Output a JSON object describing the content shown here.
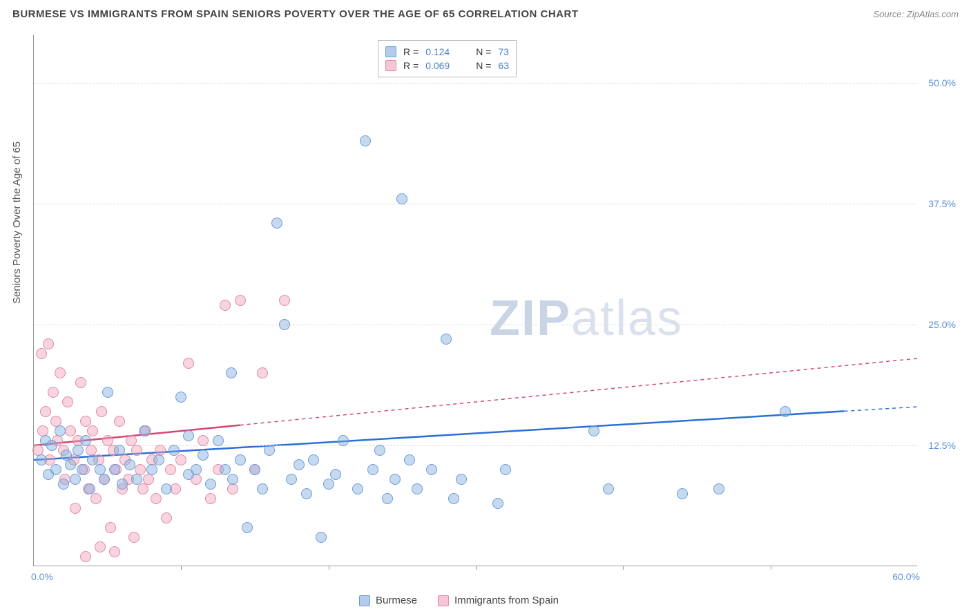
{
  "header": {
    "title": "BURMESE VS IMMIGRANTS FROM SPAIN SENIORS POVERTY OVER THE AGE OF 65 CORRELATION CHART",
    "source_prefix": "Source: ",
    "source": "ZipAtlas.com"
  },
  "chart": {
    "type": "scatter",
    "ylabel": "Seniors Poverty Over the Age of 65",
    "watermark_a": "ZIP",
    "watermark_b": "atlas",
    "xlim": [
      0,
      60
    ],
    "ylim": [
      0,
      55
    ],
    "xtick_labels": [
      "0.0%",
      "60.0%"
    ],
    "xtick_positions": [
      0,
      60
    ],
    "xtick_marks": [
      10,
      20,
      30,
      40,
      50
    ],
    "ytick_labels": [
      "12.5%",
      "25.0%",
      "37.5%",
      "50.0%"
    ],
    "ytick_positions": [
      12.5,
      25,
      37.5,
      50
    ],
    "background_color": "#ffffff",
    "grid_color": "#dddddd",
    "axis_color": "#999999",
    "series_blue": {
      "color_fill": "rgba(130,170,220,0.45)",
      "color_stroke": "#6a9ed8",
      "trend_color": "#2a6fd6",
      "trend": {
        "x1": 0,
        "y1": 11.0,
        "x2": 60,
        "y2": 16.5,
        "solid_until": 55
      },
      "points": [
        [
          0.5,
          11
        ],
        [
          0.8,
          13
        ],
        [
          1,
          9.5
        ],
        [
          1.2,
          12.5
        ],
        [
          1.5,
          10
        ],
        [
          1.8,
          14
        ],
        [
          2,
          8.5
        ],
        [
          2.2,
          11.5
        ],
        [
          2.5,
          10.5
        ],
        [
          2.8,
          9
        ],
        [
          3,
          12
        ],
        [
          3.3,
          10
        ],
        [
          3.5,
          13
        ],
        [
          3.8,
          8
        ],
        [
          4.0,
          11
        ],
        [
          4.5,
          10
        ],
        [
          4.8,
          9
        ],
        [
          5,
          18
        ],
        [
          5.5,
          10
        ],
        [
          5.8,
          12
        ],
        [
          6,
          8.5
        ],
        [
          6.5,
          10.5
        ],
        [
          7,
          9
        ],
        [
          7.5,
          14
        ],
        [
          8,
          10
        ],
        [
          8.5,
          11
        ],
        [
          9,
          8
        ],
        [
          9.5,
          12
        ],
        [
          10,
          17.5
        ],
        [
          10.5,
          9.5
        ],
        [
          11,
          10
        ],
        [
          11.5,
          11.5
        ],
        [
          12,
          8.5
        ],
        [
          12.5,
          13
        ],
        [
          13,
          10
        ],
        [
          13.4,
          20
        ],
        [
          13.5,
          9
        ],
        [
          14,
          11
        ],
        [
          14.5,
          4
        ],
        [
          15,
          10
        ],
        [
          15.5,
          8
        ],
        [
          16,
          12
        ],
        [
          16.5,
          35.5
        ],
        [
          17,
          25
        ],
        [
          17.5,
          9
        ],
        [
          18,
          10.5
        ],
        [
          18.5,
          7.5
        ],
        [
          19,
          11
        ],
        [
          19.5,
          3
        ],
        [
          20,
          8.5
        ],
        [
          20.5,
          9.5
        ],
        [
          21,
          13
        ],
        [
          22,
          8
        ],
        [
          22.5,
          44
        ],
        [
          23,
          10
        ],
        [
          23.5,
          12
        ],
        [
          24,
          7
        ],
        [
          24.5,
          9
        ],
        [
          25,
          38
        ],
        [
          25.5,
          11
        ],
        [
          26,
          8
        ],
        [
          27,
          10
        ],
        [
          28,
          23.5
        ],
        [
          28.5,
          7
        ],
        [
          29,
          9
        ],
        [
          31.5,
          6.5
        ],
        [
          32,
          10
        ],
        [
          38,
          14
        ],
        [
          39,
          8
        ],
        [
          44,
          7.5
        ],
        [
          51,
          16
        ],
        [
          46.5,
          8
        ],
        [
          10.5,
          13.5
        ]
      ]
    },
    "series_pink": {
      "color_fill": "rgba(240,160,185,0.45)",
      "color_stroke": "#e08aa8",
      "trend_color": "#d6456f",
      "trend": {
        "x1": 0,
        "y1": 12.5,
        "x2": 60,
        "y2": 21.5,
        "solid_until": 14
      },
      "points": [
        [
          0.3,
          12
        ],
        [
          0.5,
          22
        ],
        [
          0.6,
          14
        ],
        [
          0.8,
          16
        ],
        [
          1,
          23
        ],
        [
          1.1,
          11
        ],
        [
          1.3,
          18
        ],
        [
          1.5,
          15
        ],
        [
          1.6,
          13
        ],
        [
          1.8,
          20
        ],
        [
          2,
          12
        ],
        [
          2.1,
          9
        ],
        [
          2.3,
          17
        ],
        [
          2.5,
          14
        ],
        [
          2.7,
          11
        ],
        [
          2.8,
          6
        ],
        [
          3,
          13
        ],
        [
          3.2,
          19
        ],
        [
          3.4,
          10
        ],
        [
          3.5,
          15
        ],
        [
          3.7,
          8
        ],
        [
          3.9,
          12
        ],
        [
          4,
          14
        ],
        [
          4.2,
          7
        ],
        [
          4.4,
          11
        ],
        [
          4.6,
          16
        ],
        [
          4.8,
          9
        ],
        [
          5,
          13
        ],
        [
          5.2,
          4
        ],
        [
          5.4,
          12
        ],
        [
          5.6,
          10
        ],
        [
          5.8,
          15
        ],
        [
          6,
          8
        ],
        [
          6.2,
          11
        ],
        [
          6.4,
          9
        ],
        [
          6.6,
          13
        ],
        [
          6.8,
          3
        ],
        [
          7,
          12
        ],
        [
          7.2,
          10
        ],
        [
          7.4,
          8
        ],
        [
          7.6,
          14
        ],
        [
          7.8,
          9
        ],
        [
          8,
          11
        ],
        [
          8.3,
          7
        ],
        [
          8.6,
          12
        ],
        [
          9,
          5
        ],
        [
          9.3,
          10
        ],
        [
          9.6,
          8
        ],
        [
          10,
          11
        ],
        [
          10.5,
          21
        ],
        [
          11,
          9
        ],
        [
          11.5,
          13
        ],
        [
          12,
          7
        ],
        [
          12.5,
          10
        ],
        [
          13,
          27
        ],
        [
          13.5,
          8
        ],
        [
          14,
          27.5
        ],
        [
          15,
          10
        ],
        [
          15.5,
          20
        ],
        [
          17,
          27.5
        ],
        [
          3.5,
          1
        ],
        [
          4.5,
          2
        ],
        [
          5.5,
          1.5
        ]
      ]
    }
  },
  "correlation_legend": {
    "rows": [
      {
        "swatch": "blue",
        "r_label": "R =",
        "r_value": "0.124",
        "n_label": "N =",
        "n_value": "73"
      },
      {
        "swatch": "pink",
        "r_label": "R =",
        "r_value": "0.069",
        "n_label": "N =",
        "n_value": "63"
      }
    ]
  },
  "bottom_legend": {
    "items": [
      {
        "swatch": "blue",
        "label": "Burmese"
      },
      {
        "swatch": "pink",
        "label": "Immigrants from Spain"
      }
    ]
  }
}
